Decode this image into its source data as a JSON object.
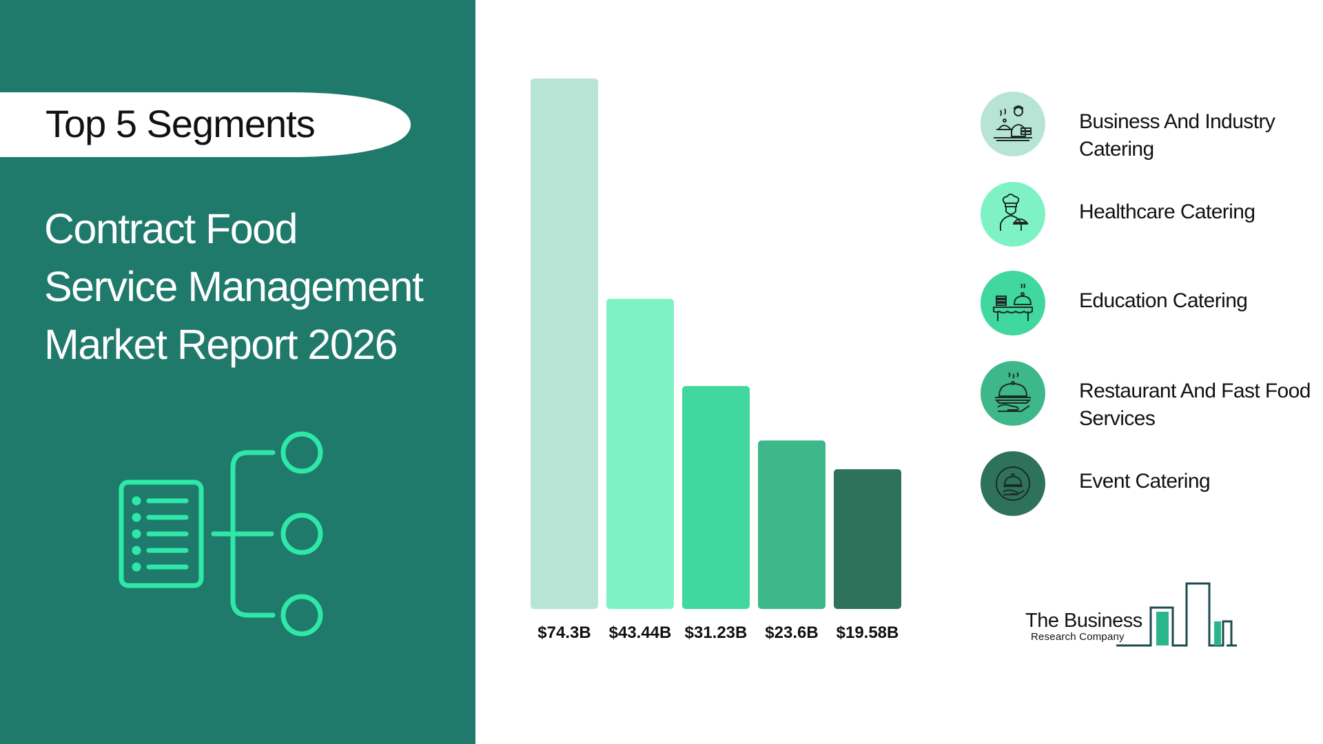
{
  "header": {
    "badge": "Top 5 Segments",
    "title_lines": [
      "Contract Food",
      "Service Management",
      "Market Report 2026"
    ]
  },
  "colors": {
    "panel": "#207a6c",
    "accent": "#2ee8a8",
    "bar_colors": [
      "#b8e4d6",
      "#7ef2c5",
      "#40d89e",
      "#3eb88a",
      "#2e725c"
    ]
  },
  "icons": [
    "segments-tree-icon",
    "chef-catering-icon",
    "chef-cloche-icon",
    "buffet-table-icon",
    "serving-tray-icon",
    "hand-cloche-icon"
  ],
  "chart_data": {
    "type": "bar",
    "categories": [
      "Business And Industry Catering",
      "Healthcare Catering",
      "Education Catering",
      "Restaurant And Fast Food Services",
      "Event Catering"
    ],
    "values": [
      74.3,
      43.44,
      31.23,
      23.6,
      19.58
    ],
    "value_labels": [
      "$74.3B",
      "$43.44B",
      "$31.23B",
      "$23.6B",
      "$19.58B"
    ],
    "ylim": [
      0,
      74.3
    ],
    "grid": false,
    "legend_position": "right"
  },
  "legend": [
    {
      "lines": [
        "Business And Industry",
        "Catering"
      ],
      "icon": "chef-catering-icon",
      "color": "#b8e4d6"
    },
    {
      "lines": [
        "Healthcare Catering"
      ],
      "icon": "chef-cloche-icon",
      "color": "#7ef2c5"
    },
    {
      "lines": [
        "Education Catering"
      ],
      "icon": "buffet-table-icon",
      "color": "#40d89e"
    },
    {
      "lines": [
        "Restaurant And Fast Food",
        "Services"
      ],
      "icon": "serving-tray-icon",
      "color": "#3eb88a"
    },
    {
      "lines": [
        "Event Catering"
      ],
      "icon": "hand-cloche-icon",
      "color": "#2e725c"
    }
  ],
  "logo": {
    "main": "The Business",
    "sub": "Research Company"
  }
}
